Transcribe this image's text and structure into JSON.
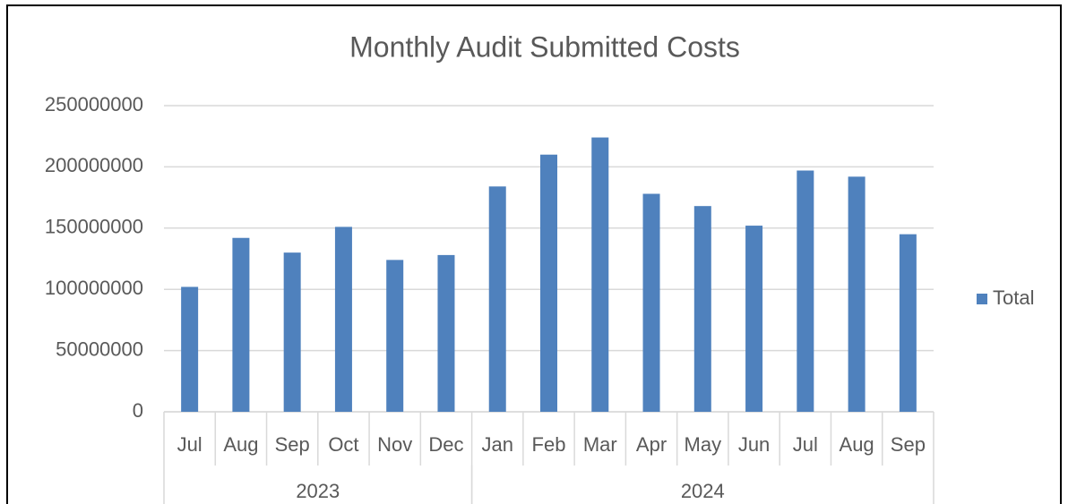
{
  "chart_data": {
    "type": "bar",
    "title": "Monthly Audit Submitted Costs",
    "categories": [
      "Jul",
      "Aug",
      "Sep",
      "Oct",
      "Nov",
      "Dec",
      "Jan",
      "Feb",
      "Mar",
      "Apr",
      "May",
      "Jun",
      "Jul",
      "Aug",
      "Sep"
    ],
    "category_groups": [
      {
        "label": "2023",
        "span": 6
      },
      {
        "label": "2024",
        "span": 9
      }
    ],
    "series": [
      {
        "name": "Total",
        "color": "#4f81bd",
        "values": [
          102000000,
          142000000,
          130000000,
          151000000,
          124000000,
          128000000,
          184000000,
          210000000,
          224000000,
          178000000,
          168000000,
          152000000,
          197000000,
          192000000,
          145000000
        ]
      }
    ],
    "ylim": [
      0,
      250000000
    ],
    "yticks": [
      0,
      50000000,
      100000000,
      150000000,
      200000000,
      250000000
    ],
    "grid": true,
    "legend": "right"
  }
}
